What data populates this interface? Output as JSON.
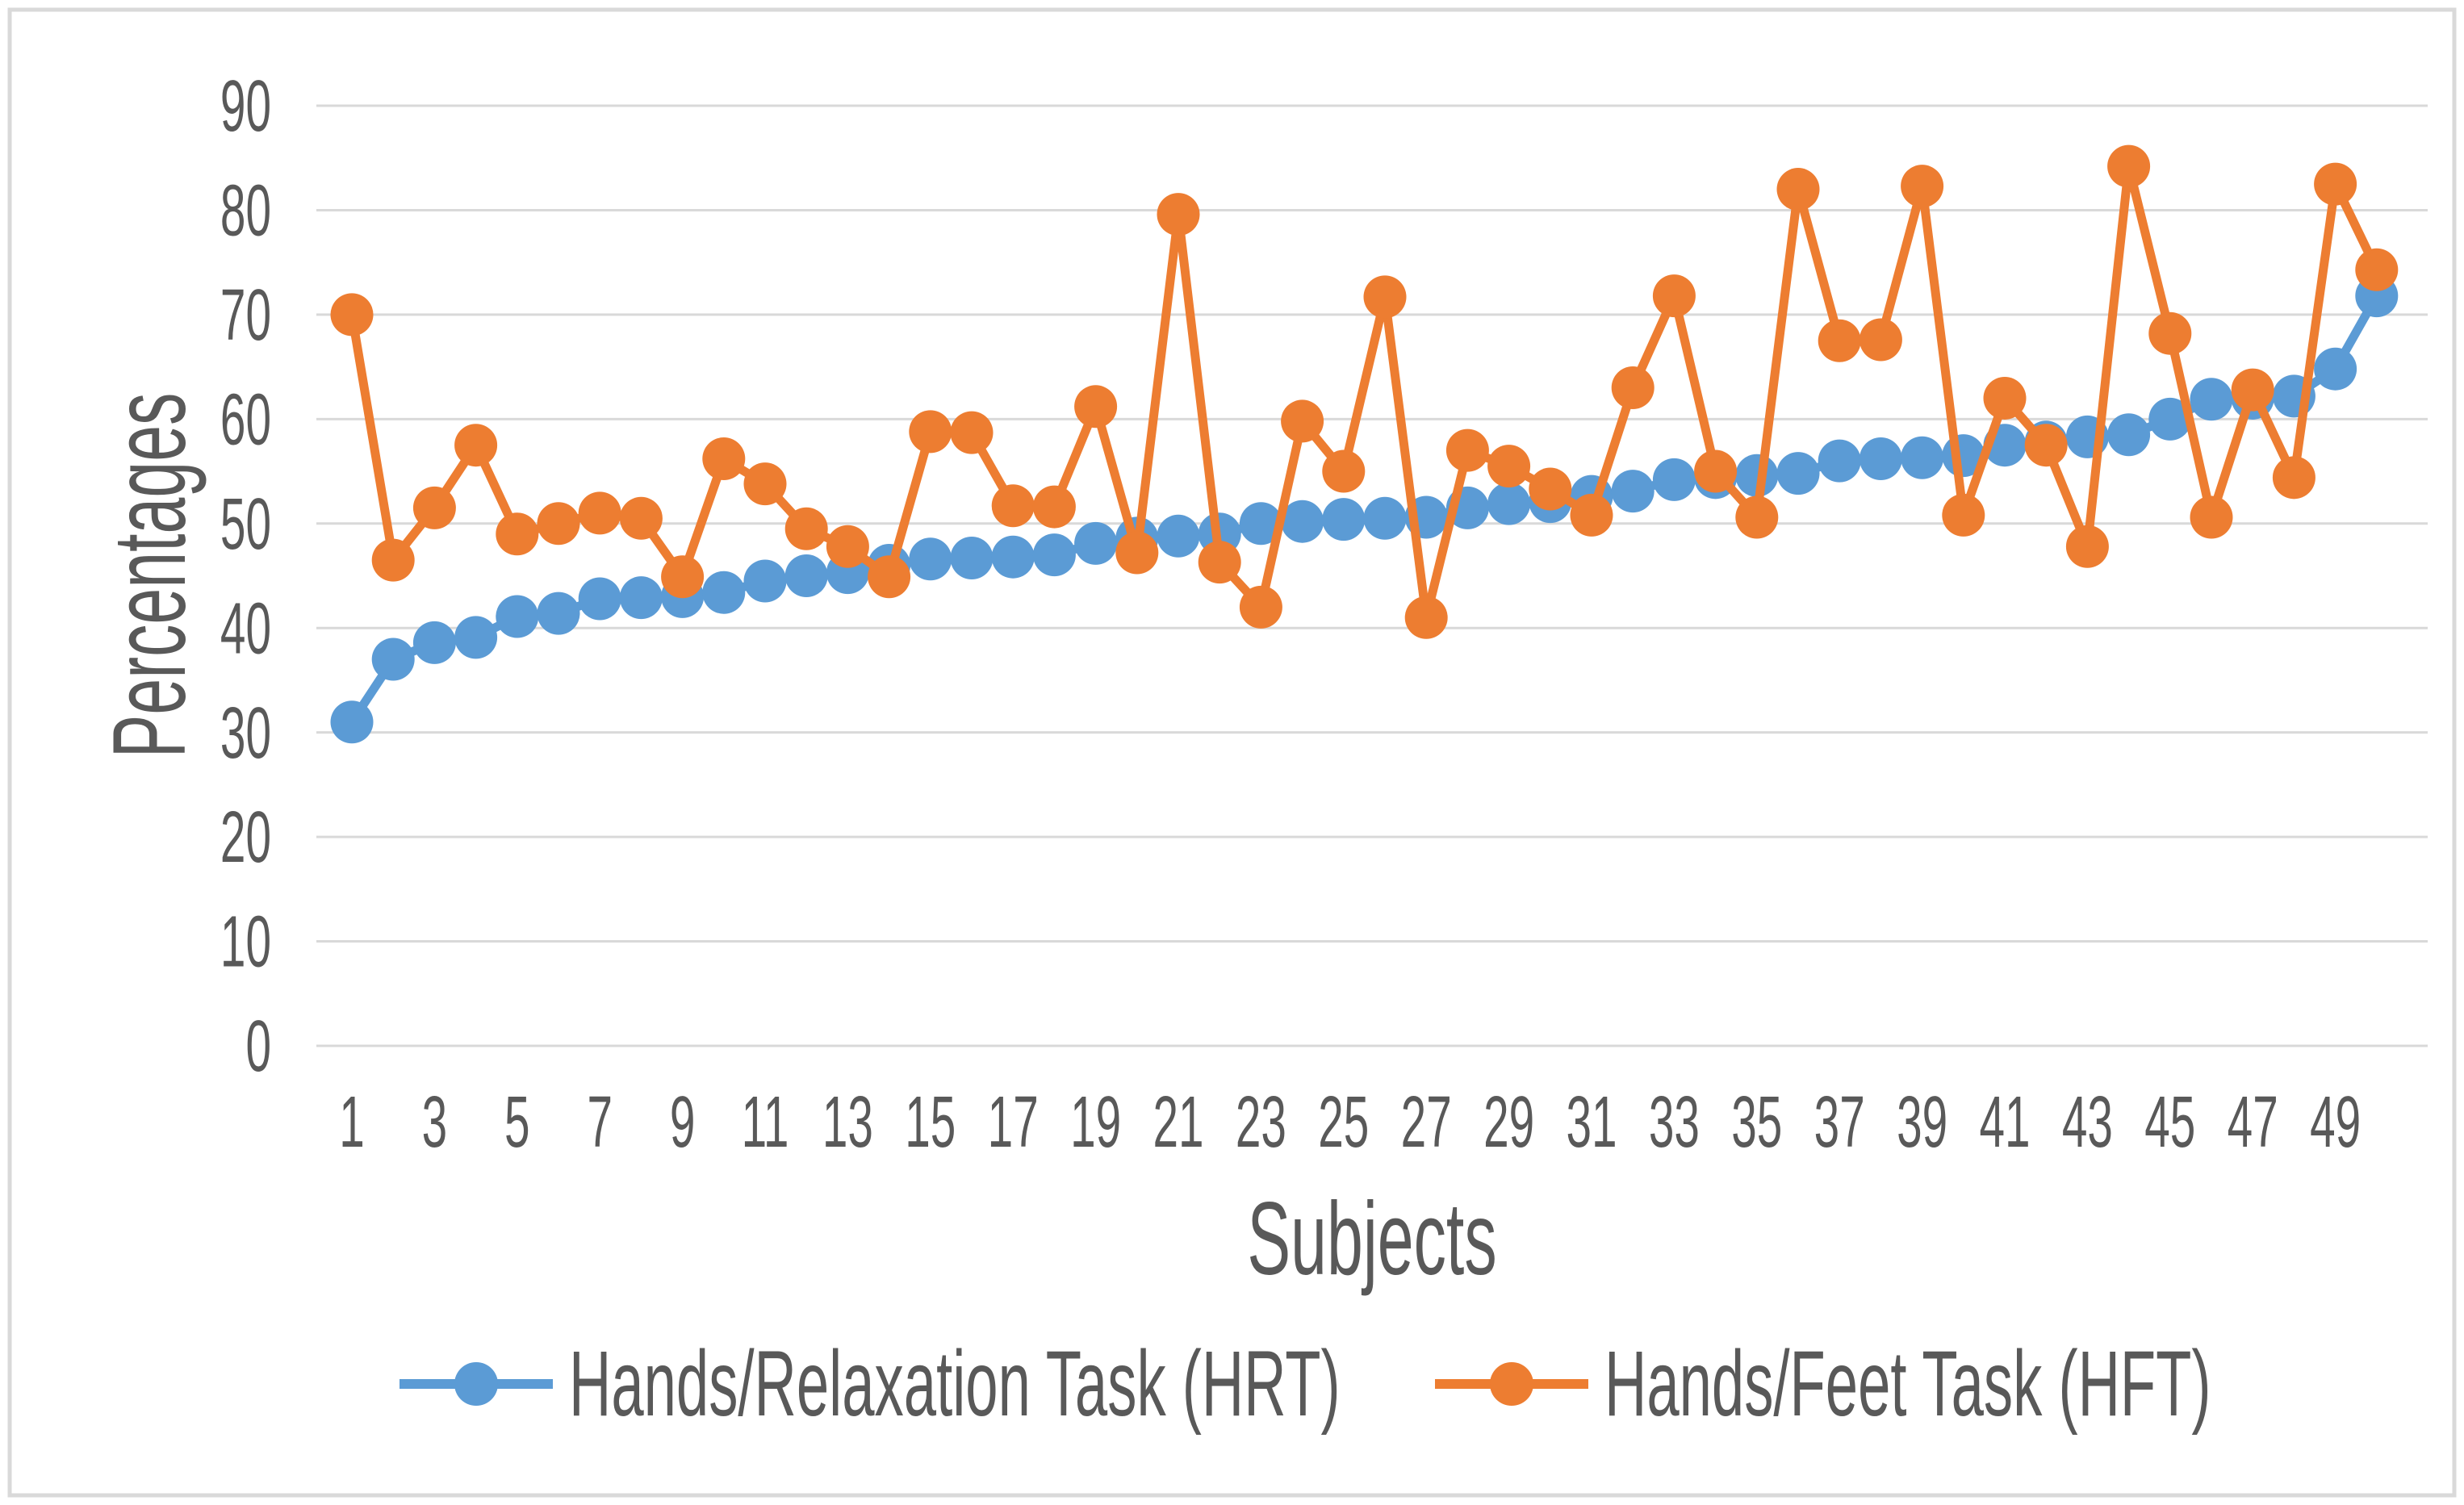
{
  "chart_data": {
    "type": "line",
    "title": "",
    "xlabel": "Subjects",
    "ylabel": "Percentages",
    "ylim": [
      0,
      90
    ],
    "y_ticks": [
      0,
      10,
      20,
      30,
      40,
      50,
      60,
      70,
      80,
      90
    ],
    "x_ticks_shown": [
      1,
      3,
      5,
      7,
      9,
      11,
      13,
      15,
      17,
      19,
      21,
      23,
      25,
      27,
      29,
      31,
      33,
      35,
      37,
      39,
      41,
      43,
      45,
      47,
      49
    ],
    "categories": [
      1,
      2,
      3,
      4,
      5,
      6,
      7,
      8,
      9,
      10,
      11,
      12,
      13,
      14,
      15,
      16,
      17,
      18,
      19,
      20,
      21,
      22,
      23,
      24,
      25,
      26,
      27,
      28,
      29,
      30,
      31,
      32,
      33,
      34,
      35,
      36,
      37,
      38,
      39,
      40,
      41,
      42,
      43,
      44,
      45,
      46,
      47,
      48,
      49,
      50
    ],
    "grid": "horizontal",
    "legend_position": "bottom-center",
    "series": [
      {
        "name": "Hands/Relaxation Task (HRT)",
        "color": "#5B9BD5",
        "values": [
          31,
          37,
          38.6,
          39.1,
          41.1,
          41.4,
          42.8,
          42.9,
          43,
          43.4,
          44.5,
          45,
          45.3,
          46,
          46.6,
          46.7,
          46.8,
          47,
          48.1,
          48.6,
          48.8,
          49,
          50,
          50.2,
          50.4,
          50.5,
          50.6,
          51.5,
          51.9,
          52.1,
          52.6,
          53.1,
          54.2,
          54.4,
          54.6,
          54.8,
          56,
          56.2,
          56.3,
          56.5,
          57.5,
          57.8,
          58.3,
          58.5,
          60,
          61.9,
          62,
          62.2,
          64.8,
          71.8
        ]
      },
      {
        "name": "Hands/Feet Task (HFT)",
        "color": "#ED7D31",
        "values": [
          70,
          46.5,
          51.5,
          57.5,
          49,
          50,
          51,
          50.5,
          44.9,
          56.2,
          53.8,
          49.5,
          47.8,
          44.9,
          58.8,
          58.7,
          51.7,
          51.6,
          61.2,
          47.2,
          79.6,
          46.3,
          42,
          59.8,
          55,
          71.7,
          41,
          57,
          55.5,
          53.3,
          50.8,
          63,
          71.8,
          55,
          50.6,
          82,
          67.5,
          67.6,
          82.3,
          50.8,
          62,
          57.5,
          47.8,
          84.2,
          68.2,
          50.6,
          62.8,
          54.4,
          82.5,
          74.3
        ]
      }
    ]
  },
  "styles": {
    "grid_color": "#D9D9D9",
    "border_color": "#D9D9D9",
    "text_color": "#595959",
    "background": "#FFFFFF"
  }
}
